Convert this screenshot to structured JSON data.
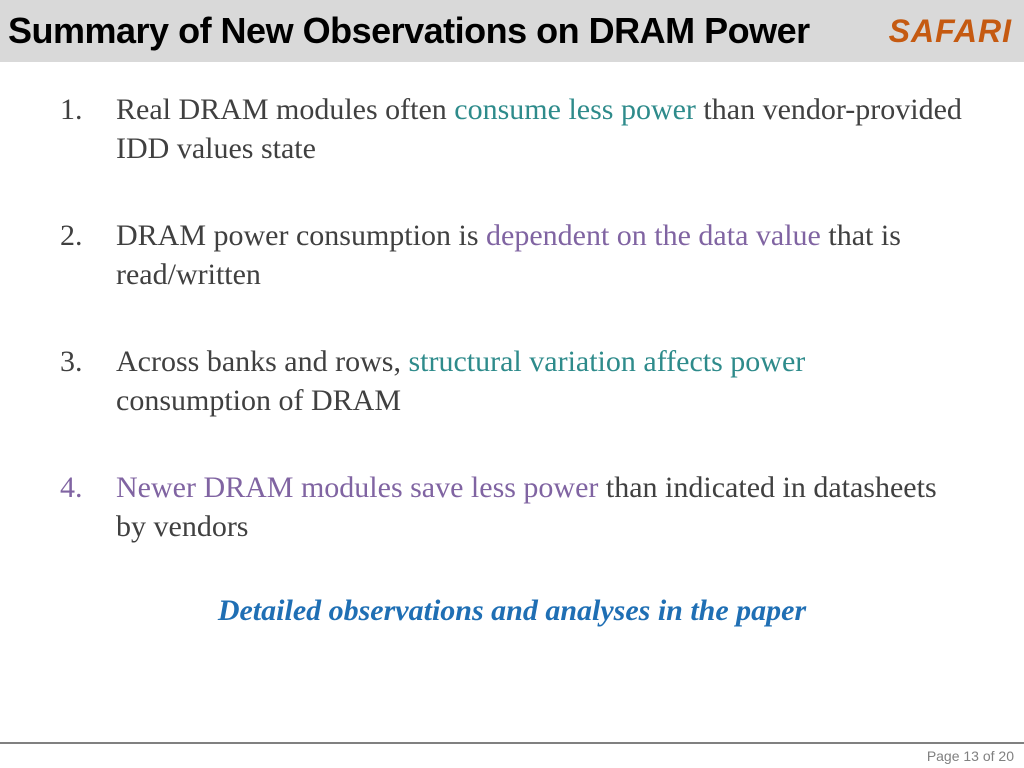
{
  "header": {
    "title": "Summary of New Observations on DRAM Power",
    "logo": "SAFARI"
  },
  "colors": {
    "header_bg": "#d9d9d9",
    "title_color": "#000000",
    "logo_color": "#c55a11",
    "body_text": "#404040",
    "teal": "#2e8b8b",
    "purple": "#8064a2",
    "footer_blue": "#1f6fb4",
    "page_bar_border": "#808080"
  },
  "typography": {
    "title_fontsize": 36,
    "logo_fontsize": 32,
    "body_fontsize": 30,
    "footer_fontsize": 30,
    "pagenum_fontsize": 14
  },
  "items": [
    {
      "parts": [
        {
          "text": "Real DRAM modules often ",
          "color": "body"
        },
        {
          "text": "consume less power",
          "color": "teal"
        },
        {
          "text": " than vendor-provided IDD values state",
          "color": "body"
        }
      ],
      "number_color": "body"
    },
    {
      "parts": [
        {
          "text": "DRAM power consumption is ",
          "color": "body"
        },
        {
          "text": "dependent on the data value",
          "color": "purple"
        },
        {
          "text": " that is read/written",
          "color": "body"
        }
      ],
      "number_color": "body"
    },
    {
      "parts": [
        {
          "text": "Across banks and rows, ",
          "color": "body"
        },
        {
          "text": "structural variation affects power",
          "color": "teal"
        },
        {
          "text": " consumption of DRAM",
          "color": "body"
        }
      ],
      "number_color": "body"
    },
    {
      "parts": [
        {
          "text": "Newer DRAM modules save less power",
          "color": "purple"
        },
        {
          "text": " than indicated in datasheets by vendors",
          "color": "body"
        }
      ],
      "number_color": "purple"
    }
  ],
  "footer_note": "Detailed observations and analyses in the paper",
  "page_label": "Page 13 of 20"
}
